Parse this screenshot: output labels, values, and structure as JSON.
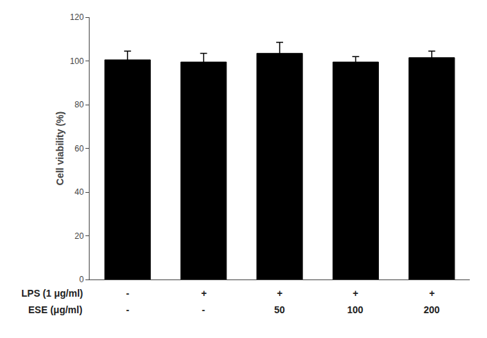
{
  "chart_data": {
    "type": "bar",
    "ylabel": "Cell viability (%)",
    "categories": [
      null,
      null,
      null,
      null,
      null
    ],
    "values": [
      100.5,
      99.5,
      103.5,
      99.5,
      101.5
    ],
    "errors": [
      4.0,
      4.0,
      5.0,
      2.5,
      3.0
    ],
    "color": "#000000",
    "ylim": [
      0,
      120
    ],
    "yticks": [
      0,
      20,
      40,
      60,
      80,
      100,
      120
    ],
    "grid": false,
    "annotations": [
      {
        "label": "LPS (1 μg/ml)",
        "texts": [
          "-",
          "+",
          "+",
          "+",
          "+"
        ]
      },
      {
        "label": "ESE (μg/ml)",
        "texts": [
          "-",
          "-",
          "50",
          "100",
          "200"
        ]
      }
    ]
  }
}
